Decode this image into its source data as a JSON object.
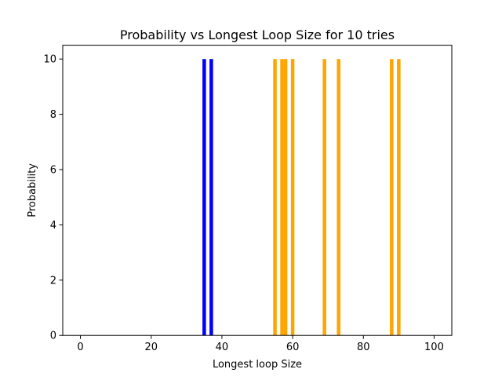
{
  "chart_data": {
    "type": "bar",
    "title": "Probability vs Longest Loop Size for 10 tries",
    "xlabel": "Longest loop Size",
    "ylabel": "Probability",
    "xlim": [
      -5,
      105
    ],
    "ylim": [
      0,
      10.5
    ],
    "x_ticks": [
      0,
      20,
      40,
      60,
      80,
      100
    ],
    "y_ticks": [
      0,
      2,
      4,
      6,
      8,
      10
    ],
    "grid": false,
    "bar_width": 1,
    "bars": [
      {
        "x": 35,
        "value": 10,
        "color": "#0000ff"
      },
      {
        "x": 37,
        "value": 10,
        "color": "#0000ff"
      },
      {
        "x": 55,
        "value": 10,
        "color": "#ffa500"
      },
      {
        "x": 57,
        "value": 10,
        "color": "#ffa500"
      },
      {
        "x": 58,
        "value": 10,
        "color": "#ffa500"
      },
      {
        "x": 60,
        "value": 10,
        "color": "#ffa500"
      },
      {
        "x": 69,
        "value": 10,
        "color": "#ffa500"
      },
      {
        "x": 73,
        "value": 10,
        "color": "#ffa500"
      },
      {
        "x": 88,
        "value": 10,
        "color": "#ffa500"
      },
      {
        "x": 90,
        "value": 10,
        "color": "#ffa500"
      }
    ]
  }
}
